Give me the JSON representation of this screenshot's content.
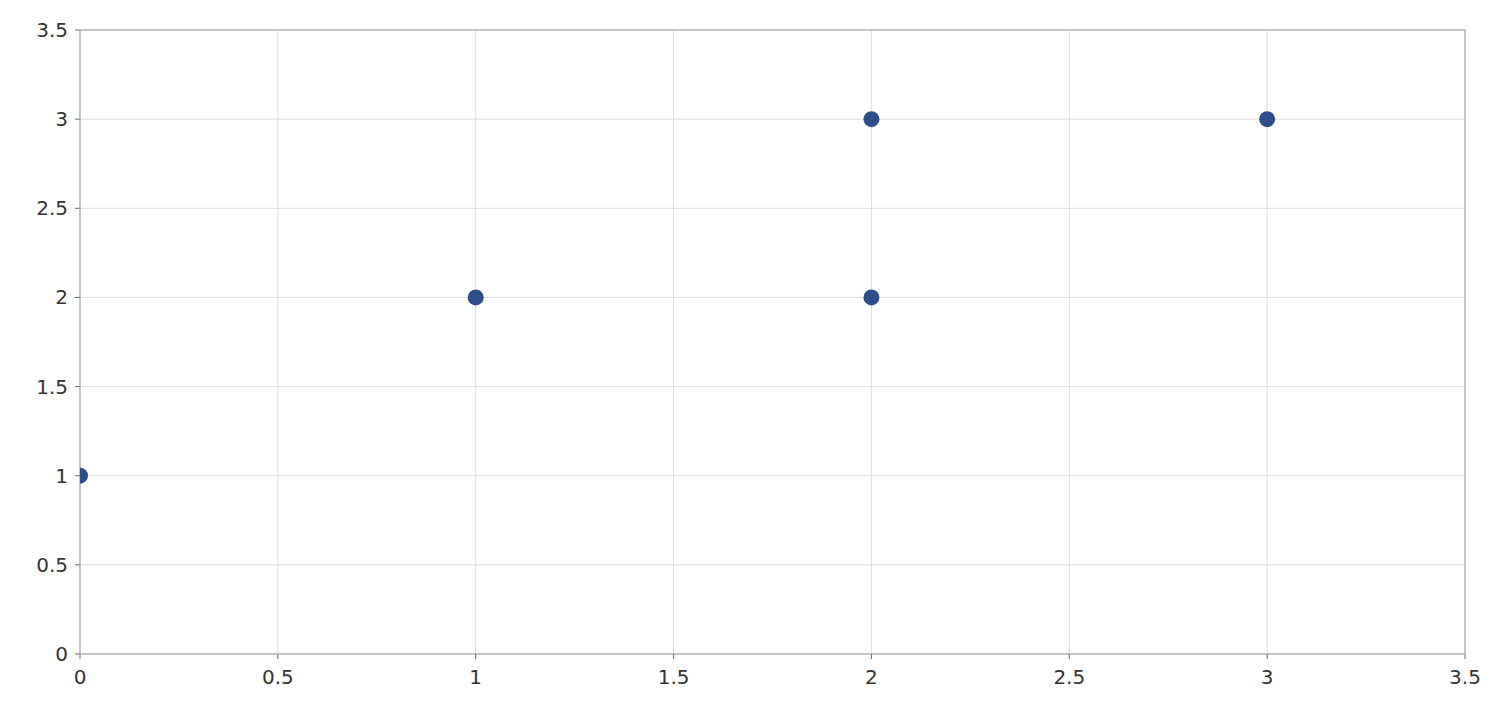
{
  "chart_data": {
    "type": "scatter",
    "x": [
      0,
      1,
      2,
      2,
      3
    ],
    "values": [
      1,
      2,
      3,
      2,
      3
    ],
    "color": "#2E4E8A",
    "xlim": [
      0,
      3.5
    ],
    "ylim": [
      0,
      3.5
    ],
    "xticks": [
      0,
      0.5,
      1,
      1.5,
      2,
      2.5,
      3,
      3.5
    ],
    "yticks": [
      0,
      0.5,
      1,
      1.5,
      2,
      2.5,
      3,
      3.5
    ],
    "grid": true
  }
}
